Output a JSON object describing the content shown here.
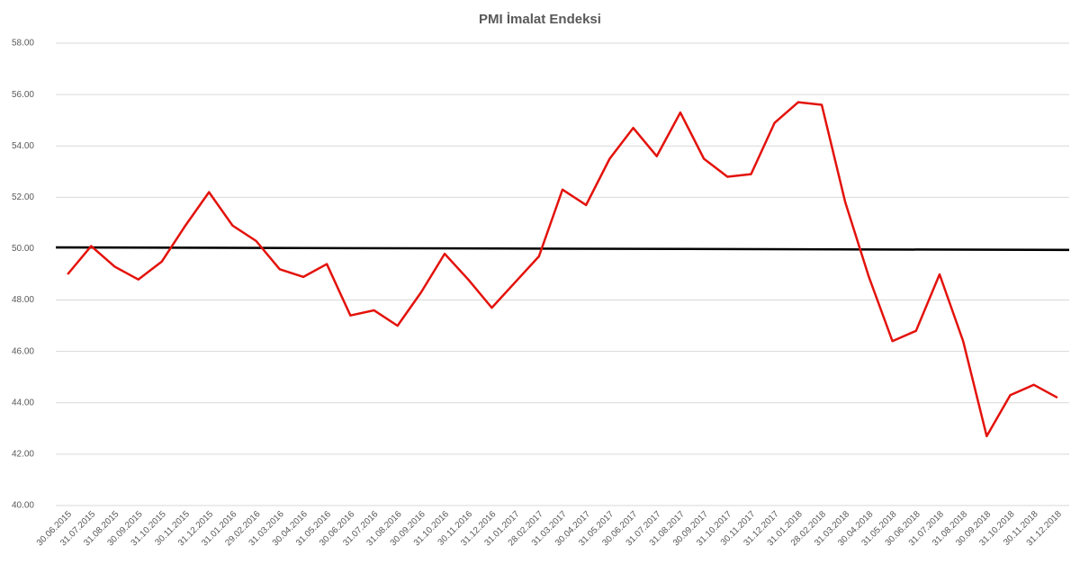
{
  "chart_data": {
    "type": "line",
    "title": "PMI İmalat Endeksi",
    "categories": [
      "30.06.2015",
      "31.07.2015",
      "31.08.2015",
      "30.09.2015",
      "31.10.2015",
      "30.11.2015",
      "31.12.2015",
      "31.01.2016",
      "29.02.2016",
      "31.03.2016",
      "30.04.2016",
      "31.05.2016",
      "30.06.2016",
      "31.07.2016",
      "31.08.2016",
      "30.09.2016",
      "31.10.2016",
      "30.11.2016",
      "31.12.2016",
      "31.01.2017",
      "28.02.2017",
      "31.03.2017",
      "30.04.2017",
      "31.05.2017",
      "30.06.2017",
      "31.07.2017",
      "31.08.2017",
      "30.09.2017",
      "31.10.2017",
      "30.11.2017",
      "31.12.2017",
      "31.01.2018",
      "28.02.2018",
      "31.03.2018",
      "30.04.2018",
      "31.05.2018",
      "30.06.2018",
      "31.07.2018",
      "31.08.2018",
      "30.09.2018",
      "31.10.2018",
      "30.11.2018",
      "31.12.2018"
    ],
    "series": [
      {
        "color": "#e3120b",
        "values": [
          49.0,
          50.1,
          49.3,
          48.8,
          49.5,
          50.9,
          52.2,
          50.9,
          50.3,
          49.2,
          48.9,
          49.4,
          47.4,
          47.6,
          47.0,
          48.3,
          49.8,
          48.8,
          47.7,
          48.7,
          49.7,
          52.3,
          51.7,
          53.5,
          54.7,
          53.6,
          55.3,
          53.5,
          52.8,
          52.9,
          54.9,
          55.7,
          55.6,
          51.8,
          48.9,
          46.4,
          46.8,
          49.0,
          46.4,
          42.7,
          44.3,
          44.7,
          44.2
        ]
      }
    ],
    "trend": {
      "color": "#000000",
      "start": 50.05,
      "end": 49.95
    },
    "ylim": [
      40,
      58
    ],
    "yticks": [
      {
        "value": 40,
        "label": "40.00"
      },
      {
        "value": 42,
        "label": "42.00"
      },
      {
        "value": 44,
        "label": "44.00"
      },
      {
        "value": 46,
        "label": "46.00"
      },
      {
        "value": 48,
        "label": "48.00"
      },
      {
        "value": 50,
        "label": "50.00"
      },
      {
        "value": 52,
        "label": "52.00"
      },
      {
        "value": 54,
        "label": "54.00"
      },
      {
        "value": 56,
        "label": "56.00"
      },
      {
        "value": 58,
        "label": "58.00"
      }
    ],
    "grid": true
  }
}
